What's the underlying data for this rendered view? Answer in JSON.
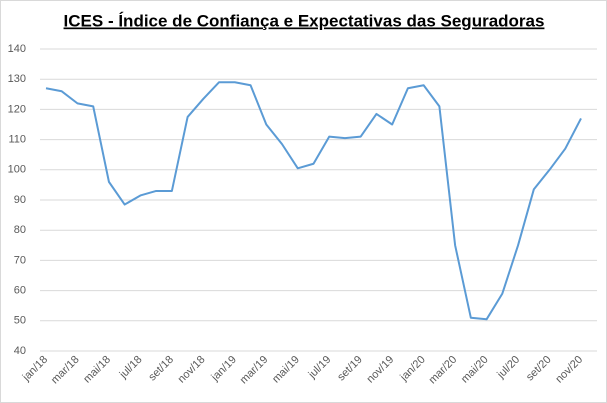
{
  "chart_data": {
    "type": "line",
    "title": "ICES - Índice de Confiança e Expectativas das Seguradoras",
    "categories": [
      "jan/18",
      null,
      "mar/18",
      null,
      "mai/18",
      null,
      "jul/18",
      null,
      "set/18",
      null,
      "nov/18",
      null,
      "jan/19",
      null,
      "mar/19",
      null,
      "mai/19",
      null,
      "jul/19",
      null,
      "set/19",
      null,
      "nov/19",
      null,
      "jan/20",
      null,
      "mar/20",
      null,
      "mai/20",
      null,
      "jul/20",
      null,
      "set/20",
      null,
      "nov/20"
    ],
    "series": [
      {
        "name": "ICES",
        "color": "#5b9bd5",
        "values": [
          127,
          126,
          122,
          121,
          96,
          88.5,
          91.5,
          93,
          93,
          117.5,
          123.5,
          129,
          129,
          128,
          115,
          108.5,
          100.5,
          102,
          111,
          110.5,
          111,
          118.5,
          115,
          127,
          128,
          121,
          75,
          51,
          50.5,
          59,
          75,
          93.5,
          100,
          107,
          117
        ]
      }
    ],
    "ylim": [
      40,
      140
    ],
    "yticks": [
      40,
      50,
      60,
      70,
      80,
      90,
      100,
      110,
      120,
      130,
      140
    ],
    "grid": true
  }
}
